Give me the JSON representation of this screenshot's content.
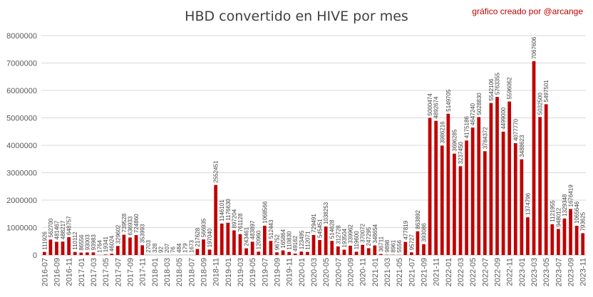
{
  "chart_data": {
    "type": "bar",
    "title": "HBD convertido en HIVE por mes",
    "annotation": "gráfico creado por @arcange",
    "xlabel": "",
    "ylabel": "",
    "ylim": [
      0,
      8000000
    ],
    "yticks": [
      "0",
      "1000000",
      "2000000",
      "3000000",
      "4000000",
      "5000000",
      "6000000",
      "7000000",
      "8000000"
    ],
    "grid": true,
    "legend": "none",
    "bar_color": "#c00000",
    "categories": [
      "2016-07",
      "2016-08",
      "2016-09",
      "2016-10",
      "2016-11",
      "2016-12",
      "2017-01",
      "2017-02",
      "2017-03",
      "2017-04",
      "2017-05",
      "2017-06",
      "2017-07",
      "2017-08",
      "2017-09",
      "2017-10",
      "2017-11",
      "2017-12",
      "2018-01",
      "2018-02",
      "2018-03",
      "2018-04",
      "2018-05",
      "2018-06",
      "2018-07",
      "2018-08",
      "2018-09",
      "2018-10",
      "2018-11",
      "2018-12",
      "2019-01",
      "2019-02",
      "2019-03",
      "2019-04",
      "2019-05",
      "2019-06",
      "2019-07",
      "2019-08",
      "2019-09",
      "2019-10",
      "2019-11",
      "2019-12",
      "2020-01",
      "2020-02",
      "2020-03",
      "2020-04",
      "2020-05",
      "2020-06",
      "2020-07",
      "2020-08",
      "2020-09",
      "2020-10",
      "2020-11",
      "2020-12",
      "2021-01",
      "2021-02",
      "2021-03",
      "2021-04",
      "2021-05",
      "2021-06",
      "2021-07",
      "2021-08",
      "2021-09",
      "2021-10",
      "2021-11",
      "2021-12",
      "2022-01",
      "2022-02",
      "2022-03",
      "2022-04",
      "2022-05",
      "2022-06",
      "2022-07",
      "2022-08",
      "2022-09",
      "2022-10",
      "2022-11",
      "2022-12",
      "2023-01",
      "2023-02",
      "2023-03",
      "2023-04",
      "2023-05",
      "2023-06",
      "2023-07",
      "2023-08",
      "2023-09",
      "2023-10",
      "2023-11"
    ],
    "values": [
      111926,
      562700,
      481467,
      488217,
      648757,
      110112,
      86556,
      93003,
      93983,
      1764,
      19341,
      46024,
      329602,
      739528,
      636933,
      724860,
      353993,
      2703,
      328,
      92,
      207,
      76,
      484,
      179,
      1673,
      217628,
      566935,
      197040,
      2552451,
      1146101,
      1176630,
      897204,
      761128,
      243461,
      483897,
      120960,
      1068566,
      512443,
      96752,
      165864,
      110830,
      49162,
      123495,
      112071,
      729491,
      545451,
      1038253,
      514628,
      312728,
      193504,
      339962,
      119600,
      370072,
      247295,
      348654,
      36711,
      9898,
      8961,
      5556,
      477819,
      95727,
      863892,
      393086,
      5000474,
      4892674,
      3986216,
      5149705,
      3696285,
      3237450,
      4175186,
      4647240,
      5028830,
      3784372,
      5542106,
      5763355,
      4499000,
      5596062,
      4077770,
      3488623,
      1374796,
      7067606,
      5032500,
      5497501,
      1121955,
      948012,
      1329348,
      1676419,
      1065646,
      793625
    ],
    "x_tick_labels_visible": [
      "2016-07",
      "2016-09",
      "2016-11",
      "2017-01",
      "2017-03",
      "2017-05",
      "2017-07",
      "2017-09",
      "2017-11",
      "2018-01",
      "2018-03",
      "2018-05",
      "2018-07",
      "2018-09",
      "2018-11",
      "2019-01",
      "2019-03",
      "2019-05",
      "2019-07",
      "2019-09",
      "2019-11",
      "2020-01",
      "2020-03",
      "2020-05",
      "2020-07",
      "2020-09",
      "2020-11",
      "2021-01",
      "2021-03",
      "2021-05",
      "2021-07",
      "2021-09",
      "2021-11",
      "2022-01",
      "2022-03",
      "2022-05",
      "2022-07",
      "2022-09",
      "2022-11",
      "2023-01",
      "2023-03",
      "2023-05",
      "2023-07",
      "2023-09",
      "2023-11"
    ]
  }
}
